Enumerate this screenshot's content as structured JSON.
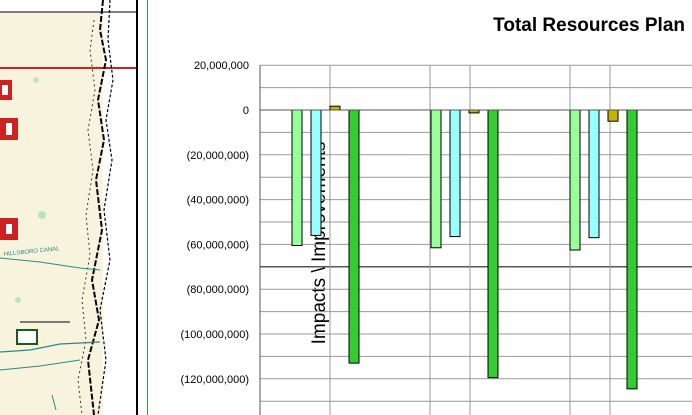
{
  "map": {
    "labels": [
      "HILLSBORO CANAL"
    ]
  },
  "chart_data": {
    "type": "bar",
    "title": "Total Resources Plan",
    "ylabel": "Impacts \\ Improvements",
    "xlabel": "",
    "ylim": [
      -135000000,
      20000000
    ],
    "yticks": [
      20000000,
      0,
      -20000000,
      -40000000,
      -60000000,
      -80000000,
      -100000000,
      -120000000
    ],
    "ytick_labels": [
      "20,000,000",
      "0",
      "(20,000,000)",
      "(40,000,000)",
      "(60,000,000)",
      "(80,000,000)",
      "(100,000,000)",
      "(120,000,000)"
    ],
    "grid": true,
    "legend": "none",
    "groups": 3,
    "series": [
      {
        "color": "#99ff99",
        "values": [
          -60500000,
          -61500000,
          -62500000
        ]
      },
      {
        "color": "#99ffff",
        "values": [
          -56000000,
          -56500000,
          -57000000
        ]
      },
      {
        "color": "#c8b400",
        "values": [
          1700000,
          -1300000,
          -5000000
        ]
      },
      {
        "color": "#33cc33",
        "values": [
          -113000000,
          -119500000,
          -124500000
        ]
      }
    ]
  }
}
